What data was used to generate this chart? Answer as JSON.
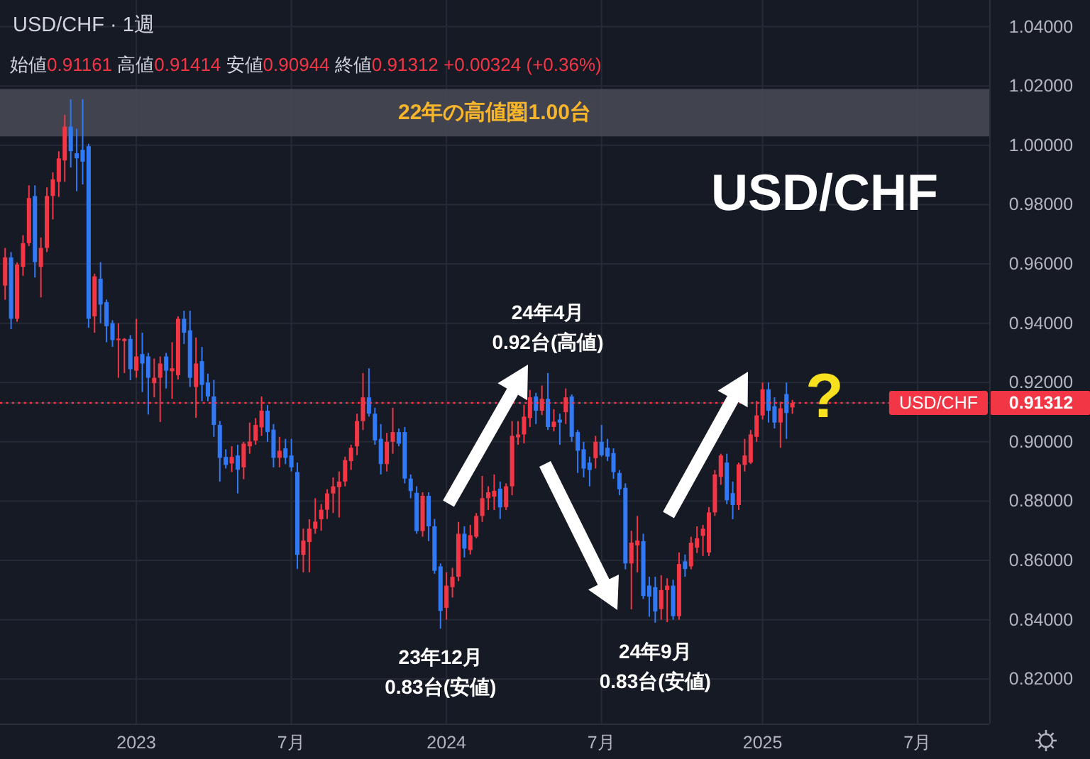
{
  "chart_data": {
    "type": "candlestick",
    "title": "USD/CHF · 1週",
    "subtitle": "始値0.91161 高値0.91414 安値0.90944 終値0.91312 +0.00324 (+0.36%)",
    "x": [
      "2022-08-01",
      "2022-08-08",
      "2022-08-15",
      "2022-08-22",
      "2022-08-29",
      "2022-09-05",
      "2022-09-12",
      "2022-09-19",
      "2022-09-26",
      "2022-10-03",
      "2022-10-10",
      "2022-10-17",
      "2022-10-24",
      "2022-10-31",
      "2022-11-07",
      "2022-11-14",
      "2022-11-21",
      "2022-11-28",
      "2022-12-05",
      "2022-12-12",
      "2022-12-19",
      "2022-12-26",
      "2023-01-02",
      "2023-01-09",
      "2023-01-16",
      "2023-01-23",
      "2023-01-30",
      "2023-02-06",
      "2023-02-13",
      "2023-02-20",
      "2023-02-27",
      "2023-03-06",
      "2023-03-13",
      "2023-03-20",
      "2023-03-27",
      "2023-04-03",
      "2023-04-10",
      "2023-04-17",
      "2023-04-24",
      "2023-05-01",
      "2023-05-08",
      "2023-05-15",
      "2023-05-22",
      "2023-05-29",
      "2023-06-05",
      "2023-06-12",
      "2023-06-19",
      "2023-06-26",
      "2023-07-03",
      "2023-07-10",
      "2023-07-17",
      "2023-07-24",
      "2023-07-31",
      "2023-08-07",
      "2023-08-14",
      "2023-08-21",
      "2023-08-28",
      "2023-09-04",
      "2023-09-11",
      "2023-09-18",
      "2023-09-25",
      "2023-10-02",
      "2023-10-09",
      "2023-10-16",
      "2023-10-23",
      "2023-10-30",
      "2023-11-06",
      "2023-11-13",
      "2023-11-20",
      "2023-11-27",
      "2023-12-04",
      "2023-12-11",
      "2023-12-18",
      "2023-12-25",
      "2024-01-01",
      "2024-01-08",
      "2024-01-15",
      "2024-01-22",
      "2024-01-29",
      "2024-02-05",
      "2024-02-12",
      "2024-02-19",
      "2024-02-26",
      "2024-03-04",
      "2024-03-11",
      "2024-03-18",
      "2024-03-25",
      "2024-04-01",
      "2024-04-08",
      "2024-04-15",
      "2024-04-22",
      "2024-04-29",
      "2024-05-06",
      "2024-05-13",
      "2024-05-20",
      "2024-05-27",
      "2024-06-03",
      "2024-06-10",
      "2024-06-17",
      "2024-06-24",
      "2024-07-01",
      "2024-07-08",
      "2024-07-15",
      "2024-07-22",
      "2024-07-29",
      "2024-08-05",
      "2024-08-12",
      "2024-08-19",
      "2024-08-26",
      "2024-09-02",
      "2024-09-09",
      "2024-09-16",
      "2024-09-23",
      "2024-09-30",
      "2024-10-07",
      "2024-10-14",
      "2024-10-21",
      "2024-10-28",
      "2024-11-04",
      "2024-11-11",
      "2024-11-18",
      "2024-11-25",
      "2024-12-02",
      "2024-12-09",
      "2024-12-16",
      "2024-12-23",
      "2024-12-30",
      "2025-01-06",
      "2025-01-13",
      "2025-01-20",
      "2025-01-27",
      "2025-02-03",
      "2025-02-10"
    ],
    "ohlc": [
      [
        0.9527,
        0.9654,
        0.9479,
        0.9622
      ],
      [
        0.9622,
        0.964,
        0.938,
        0.9415
      ],
      [
        0.9415,
        0.9605,
        0.9405,
        0.9598
      ],
      [
        0.959,
        0.9697,
        0.956,
        0.967
      ],
      [
        0.967,
        0.9865,
        0.966,
        0.9822
      ],
      [
        0.9829,
        0.9865,
        0.9554,
        0.9606
      ],
      [
        0.959,
        0.9689,
        0.9487,
        0.9654
      ],
      [
        0.9654,
        0.9858,
        0.964,
        0.9829
      ],
      [
        0.9829,
        0.9909,
        0.975,
        0.9885
      ],
      [
        0.9877,
        0.998,
        0.9826,
        0.9956
      ],
      [
        0.9949,
        1.0103,
        0.9877,
        1.0063
      ],
      [
        1.0063,
        1.0155,
        0.9925,
        0.998
      ],
      [
        0.9973,
        1.0056,
        0.9845,
        0.9956
      ],
      [
        0.9985,
        1.0155,
        0.9868,
        0.9945
      ],
      [
        0.9997,
        1.0005,
        0.9385,
        0.9415
      ],
      [
        0.9423,
        0.9567,
        0.9368,
        0.9558
      ],
      [
        0.955,
        0.9606,
        0.94,
        0.9463
      ],
      [
        0.9471,
        0.948,
        0.9336,
        0.939
      ],
      [
        0.94,
        0.941,
        0.932,
        0.9343
      ],
      [
        0.9343,
        0.94,
        0.9216,
        0.9348
      ],
      [
        0.934,
        0.935,
        0.9232,
        0.9347
      ],
      [
        0.9347,
        0.936,
        0.9208,
        0.9245
      ],
      [
        0.924,
        0.9415,
        0.9216,
        0.9288
      ],
      [
        0.9296,
        0.9368,
        0.9168,
        0.9264
      ],
      [
        0.9288,
        0.93,
        0.9092,
        0.9216
      ],
      [
        0.9198,
        0.9281,
        0.915,
        0.9216
      ],
      [
        0.9216,
        0.9288,
        0.9067,
        0.9264
      ],
      [
        0.9288,
        0.93,
        0.918,
        0.924
      ],
      [
        0.9238,
        0.9336,
        0.9145,
        0.9248
      ],
      [
        0.9225,
        0.9423,
        0.921,
        0.9415
      ],
      [
        0.9415,
        0.9442,
        0.933,
        0.9368
      ],
      [
        0.9376,
        0.9442,
        0.9185,
        0.9216
      ],
      [
        0.9185,
        0.9352,
        0.9081,
        0.9264
      ],
      [
        0.9272,
        0.932,
        0.9137,
        0.9192
      ],
      [
        0.92,
        0.923,
        0.9137,
        0.9153
      ],
      [
        0.9153,
        0.9209,
        0.9017,
        0.9057
      ],
      [
        0.9057,
        0.907,
        0.8866,
        0.8946
      ],
      [
        0.8949,
        0.8975,
        0.891,
        0.8922
      ],
      [
        0.8927,
        0.8985,
        0.8898,
        0.8949
      ],
      [
        0.8954,
        0.899,
        0.8826,
        0.8906
      ],
      [
        0.8914,
        0.9,
        0.8874,
        0.8994
      ],
      [
        0.8985,
        0.9065,
        0.896,
        0.9001
      ],
      [
        0.9004,
        0.908,
        0.899,
        0.9057
      ],
      [
        0.9049,
        0.9153,
        0.902,
        0.9105
      ],
      [
        0.9105,
        0.9124,
        0.9,
        0.9033
      ],
      [
        0.9041,
        0.906,
        0.8914,
        0.8946
      ],
      [
        0.8946,
        0.9017,
        0.8914,
        0.897
      ],
      [
        0.8978,
        0.901,
        0.8925,
        0.8946
      ],
      [
        0.8954,
        0.901,
        0.89,
        0.8914
      ],
      [
        0.8898,
        0.893,
        0.8571,
        0.8619
      ],
      [
        0.8619,
        0.8707,
        0.856,
        0.8667
      ],
      [
        0.8662,
        0.8739,
        0.856,
        0.8707
      ],
      [
        0.8707,
        0.881,
        0.869,
        0.8731
      ],
      [
        0.8739,
        0.879,
        0.87,
        0.8771
      ],
      [
        0.8771,
        0.884,
        0.874,
        0.8826
      ],
      [
        0.8826,
        0.888,
        0.876,
        0.885
      ],
      [
        0.8847,
        0.89,
        0.8745,
        0.8866
      ],
      [
        0.8866,
        0.895,
        0.885,
        0.8938
      ],
      [
        0.8935,
        0.899,
        0.8905,
        0.898
      ],
      [
        0.8985,
        0.9095,
        0.8955,
        0.907
      ],
      [
        0.907,
        0.9232,
        0.904,
        0.915
      ],
      [
        0.915,
        0.9248,
        0.9085,
        0.9095
      ],
      [
        0.9095,
        0.9115,
        0.899,
        0.9005
      ],
      [
        0.901,
        0.906,
        0.889,
        0.8925
      ],
      [
        0.8925,
        0.903,
        0.89,
        0.9
      ],
      [
        0.9,
        0.9115,
        0.896,
        0.9033
      ],
      [
        0.9033,
        0.9045,
        0.8985,
        0.8994
      ],
      [
        0.9033,
        0.905,
        0.886,
        0.8876
      ],
      [
        0.8876,
        0.889,
        0.881,
        0.8834
      ],
      [
        0.8828,
        0.885,
        0.869,
        0.8699
      ],
      [
        0.8699,
        0.883,
        0.868,
        0.8818
      ],
      [
        0.8818,
        0.883,
        0.8665,
        0.8715
      ],
      [
        0.8715,
        0.874,
        0.8555,
        0.8565
      ],
      [
        0.858,
        0.859,
        0.837,
        0.843
      ],
      [
        0.844,
        0.856,
        0.84,
        0.8515
      ],
      [
        0.851,
        0.8575,
        0.8475,
        0.8545
      ],
      [
        0.8545,
        0.873,
        0.853,
        0.869
      ],
      [
        0.869,
        0.8715,
        0.861,
        0.864
      ],
      [
        0.8635,
        0.872,
        0.862,
        0.8685
      ],
      [
        0.868,
        0.876,
        0.8675,
        0.875
      ],
      [
        0.875,
        0.8885,
        0.873,
        0.881
      ],
      [
        0.881,
        0.885,
        0.877,
        0.883
      ],
      [
        0.8815,
        0.889,
        0.877,
        0.8835
      ],
      [
        0.8842,
        0.8866,
        0.874,
        0.8779
      ],
      [
        0.878,
        0.886,
        0.877,
        0.885
      ],
      [
        0.885,
        0.907,
        0.882,
        0.902
      ],
      [
        0.9015,
        0.907,
        0.899,
        0.9025
      ],
      [
        0.9025,
        0.9125,
        0.8995,
        0.9085
      ],
      [
        0.908,
        0.9175,
        0.905,
        0.915
      ],
      [
        0.9153,
        0.9165,
        0.906,
        0.9105
      ],
      [
        0.9105,
        0.919,
        0.909,
        0.9145
      ],
      [
        0.9145,
        0.9232,
        0.904,
        0.905
      ],
      [
        0.905,
        0.911,
        0.9035,
        0.9068
      ],
      [
        0.9075,
        0.9095,
        0.899,
        0.9065
      ],
      [
        0.91,
        0.918,
        0.906,
        0.915
      ],
      [
        0.9153,
        0.916,
        0.9,
        0.9017
      ],
      [
        0.9033,
        0.904,
        0.8895,
        0.897
      ],
      [
        0.8975,
        0.9,
        0.888,
        0.891
      ],
      [
        0.893,
        0.895,
        0.885,
        0.8905
      ],
      [
        0.8945,
        0.902,
        0.891,
        0.9
      ],
      [
        0.9,
        0.9057,
        0.895,
        0.8955
      ],
      [
        0.898,
        0.901,
        0.8935,
        0.895
      ],
      [
        0.8962,
        0.8978,
        0.8875,
        0.8898
      ],
      [
        0.8895,
        0.8905,
        0.882,
        0.884
      ],
      [
        0.8845,
        0.886,
        0.857,
        0.859
      ],
      [
        0.859,
        0.87,
        0.8435,
        0.866
      ],
      [
        0.8651,
        0.875,
        0.856,
        0.8667
      ],
      [
        0.8665,
        0.869,
        0.847,
        0.848
      ],
      [
        0.8515,
        0.8545,
        0.841,
        0.8478
      ],
      [
        0.851,
        0.8545,
        0.839,
        0.8428
      ],
      [
        0.8436,
        0.855,
        0.84,
        0.85
      ],
      [
        0.85,
        0.854,
        0.8392,
        0.8515
      ],
      [
        0.8515,
        0.8535,
        0.84,
        0.8412
      ],
      [
        0.8412,
        0.8627,
        0.84,
        0.8588
      ],
      [
        0.8597,
        0.862,
        0.8545,
        0.8571
      ],
      [
        0.858,
        0.868,
        0.857,
        0.866
      ],
      [
        0.8643,
        0.8715,
        0.8625,
        0.8675
      ],
      [
        0.8683,
        0.872,
        0.8615,
        0.8707
      ],
      [
        0.8627,
        0.878,
        0.8615,
        0.8762
      ],
      [
        0.8762,
        0.8905,
        0.875,
        0.889
      ],
      [
        0.8882,
        0.896,
        0.8855,
        0.8954
      ],
      [
        0.893,
        0.896,
        0.879,
        0.8803
      ],
      [
        0.8827,
        0.8866,
        0.8739,
        0.8787
      ],
      [
        0.8787,
        0.893,
        0.877,
        0.8924
      ],
      [
        0.8922,
        0.901,
        0.89,
        0.8954
      ],
      [
        0.893,
        0.904,
        0.8925,
        0.9025
      ],
      [
        0.9017,
        0.9138,
        0.9,
        0.9089
      ],
      [
        0.9089,
        0.92,
        0.9075,
        0.9177
      ],
      [
        0.9177,
        0.92,
        0.9065,
        0.9105
      ],
      [
        0.912,
        0.915,
        0.9045,
        0.9065
      ],
      [
        0.9065,
        0.9135,
        0.898,
        0.9113
      ],
      [
        0.9161,
        0.92,
        0.901,
        0.9097
      ],
      [
        0.91161,
        0.91414,
        0.90944,
        0.91312
      ]
    ],
    "colors": [
      "#f23645",
      "#3179f5",
      "#f23645",
      "#f23645",
      "#f23645",
      "#3179f5",
      "#f23645",
      "#f23645",
      "#f23645",
      "#f23645",
      "#f23645",
      "#3179f5",
      "#3179f5",
      "#3179f5",
      "#3179f5",
      "#f23645",
      "#3179f5",
      "#3179f5",
      "#3179f5",
      "#f23645",
      "#f23645",
      "#3179f5",
      "#f23645",
      "#3179f5",
      "#3179f5",
      "#f23645",
      "#f23645",
      "#3179f5",
      "#f23645",
      "#f23645",
      "#3179f5",
      "#3179f5",
      "#f23645",
      "#3179f5",
      "#3179f5",
      "#3179f5",
      "#3179f5",
      "#3179f5",
      "#f23645",
      "#3179f5",
      "#f23645",
      "#f23645",
      "#f23645",
      "#f23645",
      "#3179f5",
      "#3179f5",
      "#f23645",
      "#3179f5",
      "#3179f5",
      "#3179f5",
      "#f23645",
      "#f23645",
      "#f23645",
      "#f23645",
      "#f23645",
      "#f23645",
      "#f23645",
      "#f23645",
      "#f23645",
      "#f23645",
      "#f23645",
      "#3179f5",
      "#3179f5",
      "#3179f5",
      "#f23645",
      "#f23645",
      "#3179f5",
      "#3179f5",
      "#3179f5",
      "#3179f5",
      "#f23645",
      "#3179f5",
      "#3179f5",
      "#3179f5",
      "#f23645",
      "#f23645",
      "#f23645",
      "#3179f5",
      "#f23645",
      "#f23645",
      "#f23645",
      "#f23645",
      "#f23645",
      "#3179f5",
      "#f23645",
      "#f23645",
      "#f23645",
      "#f23645",
      "#f23645",
      "#3179f5",
      "#f23645",
      "#3179f5",
      "#f23645",
      "#3179f5",
      "#f23645",
      "#3179f5",
      "#3179f5",
      "#3179f5",
      "#3179f5",
      "#f23645",
      "#3179f5",
      "#3179f5",
      "#3179f5",
      "#3179f5",
      "#3179f5",
      "#f23645",
      "#f23645",
      "#3179f5",
      "#3179f5",
      "#3179f5",
      "#f23645",
      "#f23645",
      "#3179f5",
      "#f23645",
      "#3179f5",
      "#f23645",
      "#f23645",
      "#f23645",
      "#f23645",
      "#f23645",
      "#f23645",
      "#3179f5",
      "#3179f5",
      "#f23645",
      "#f23645",
      "#f23645",
      "#f23645",
      "#f23645",
      "#3179f5",
      "#3179f5",
      "#f23645",
      "#3179f5",
      "#f23645"
    ],
    "xlim": [
      "2022-07-26",
      "2025-09-29"
    ],
    "xticks": [
      {
        "value": "2023-01-02",
        "label": "2023"
      },
      {
        "value": "2023-07-03",
        "label": "7月"
      },
      {
        "value": "2024-01-01",
        "label": "2024"
      },
      {
        "value": "2024-07-01",
        "label": "7月"
      },
      {
        "value": "2025-01-06",
        "label": "2025"
      },
      {
        "value": "2025-07-07",
        "label": "7月"
      }
    ],
    "ylim": [
      0.805,
      1.049
    ],
    "yticks": [
      {
        "value": 0.82,
        "label": "0.82000"
      },
      {
        "value": 0.84,
        "label": "0.84000"
      },
      {
        "value": 0.86,
        "label": "0.86000"
      },
      {
        "value": 0.88,
        "label": "0.88000"
      },
      {
        "value": 0.9,
        "label": "0.90000"
      },
      0.91312,
      {
        "value": 0.92,
        "label": "0.92000"
      },
      {
        "value": 0.94,
        "label": "0.94000"
      },
      {
        "value": 0.96,
        "label": "0.96000"
      },
      {
        "value": 0.98,
        "label": "0.98000"
      },
      {
        "value": 1.0,
        "label": "1.00000"
      },
      {
        "value": 1.02,
        "label": "1.02000"
      },
      {
        "value": 1.04,
        "label": "1.04000"
      }
    ],
    "grid": true,
    "bands": [
      {
        "axis": "y",
        "from": 1.003,
        "to": 1.019,
        "label": "22年の高値圏1.00台",
        "color": "#454852"
      }
    ],
    "ref_lines": [
      {
        "axis": "y",
        "value": 0.91312,
        "label": "USD/CHF",
        "color": "#f23645",
        "line_style": "dotted"
      }
    ],
    "annotations": [
      {
        "text": "24年4月\n0.92台(高値)",
        "x": "2024-04-29",
        "y": 0.9232
      },
      {
        "text": "23年12月\n0.83台(安値)",
        "x": "2023-12-25",
        "y": 0.837
      },
      {
        "text": "24年9月\n0.83台(安値)",
        "x": "2024-09-02",
        "y": 0.839
      },
      "USD/CHF",
      "?"
    ]
  }
}
